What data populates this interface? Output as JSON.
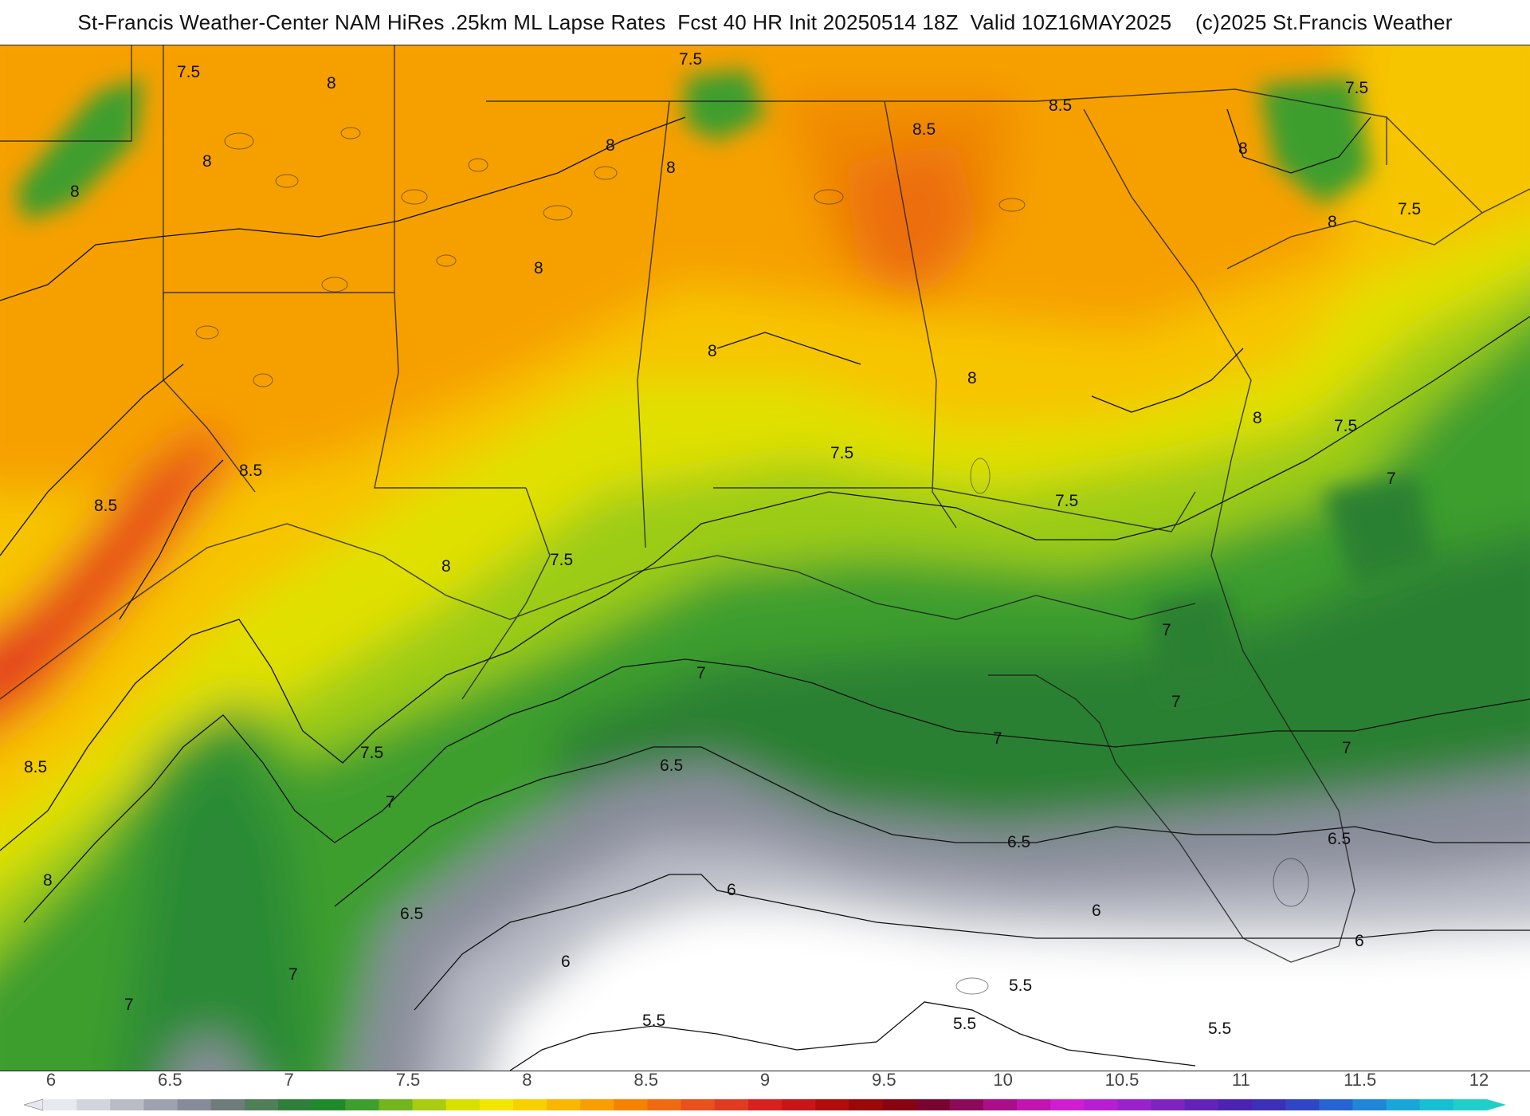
{
  "header": {
    "title": "St-Francis Weather-Center NAM HiRes .25km ML Lapse Rates  Fcst 40 HR Init 20250514 18Z  Valid 10Z16MAY2025    (c)2025 St.Francis Weather"
  },
  "map": {
    "field": "ML Lapse Rates",
    "contour_labels": [
      {
        "id": "c01",
        "text": "7.5"
      },
      {
        "id": "c02",
        "text": "8"
      },
      {
        "id": "c03",
        "text": "8"
      },
      {
        "id": "c04",
        "text": "8"
      },
      {
        "id": "c05",
        "text": "7.5"
      },
      {
        "id": "c06",
        "text": "8"
      },
      {
        "id": "c07",
        "text": "8"
      },
      {
        "id": "c08",
        "text": "8.5"
      },
      {
        "id": "c09",
        "text": "8.5"
      },
      {
        "id": "c10",
        "text": "8"
      },
      {
        "id": "c11",
        "text": "7.5"
      },
      {
        "id": "c12",
        "text": "8"
      },
      {
        "id": "c13",
        "text": "7.5"
      },
      {
        "id": "c14",
        "text": "8"
      },
      {
        "id": "c15",
        "text": "8"
      },
      {
        "id": "c16",
        "text": "8"
      },
      {
        "id": "c17",
        "text": "8.5"
      },
      {
        "id": "c18",
        "text": "8.5"
      },
      {
        "id": "c19",
        "text": "7.5"
      },
      {
        "id": "c20",
        "text": "7"
      },
      {
        "id": "c21",
        "text": "8"
      },
      {
        "id": "c22",
        "text": "7.5"
      },
      {
        "id": "c23",
        "text": "7.5"
      },
      {
        "id": "c24",
        "text": "8"
      },
      {
        "id": "c25",
        "text": "7.5"
      },
      {
        "id": "c26",
        "text": "8.5"
      },
      {
        "id": "c27",
        "text": "7.5"
      },
      {
        "id": "c28",
        "text": "7"
      },
      {
        "id": "c29",
        "text": "7"
      },
      {
        "id": "c30",
        "text": "7"
      },
      {
        "id": "c31",
        "text": "7"
      },
      {
        "id": "c32",
        "text": "7"
      },
      {
        "id": "c33",
        "text": "7"
      },
      {
        "id": "c34",
        "text": "6.5"
      },
      {
        "id": "c35",
        "text": "6.5"
      },
      {
        "id": "c36",
        "text": "6.5"
      },
      {
        "id": "c37",
        "text": "6.5"
      },
      {
        "id": "c38",
        "text": "8"
      },
      {
        "id": "c39",
        "text": "6"
      },
      {
        "id": "c40",
        "text": "6"
      },
      {
        "id": "c41",
        "text": "6"
      },
      {
        "id": "c42",
        "text": "6"
      },
      {
        "id": "c43",
        "text": "7"
      },
      {
        "id": "c44",
        "text": "7"
      },
      {
        "id": "c45",
        "text": "5.5"
      },
      {
        "id": "c46",
        "text": "5.5"
      },
      {
        "id": "c47",
        "text": "5.5"
      },
      {
        "id": "c48",
        "text": "5.5"
      }
    ]
  },
  "legend": {
    "ticks": [
      "6",
      "6.5",
      "7",
      "7.5",
      "8",
      "8.5",
      "9",
      "9.5",
      "10",
      "10.5",
      "11",
      "11.5",
      "12"
    ],
    "min": 6,
    "max": 12,
    "colors": [
      "#e8e9ee",
      "#d3d5dc",
      "#b9bcc6",
      "#9ea2ae",
      "#878b99",
      "#6f7d7a",
      "#4f7f57",
      "#2f7f3a",
      "#1f8a2a",
      "#3e9e2e",
      "#72b51e",
      "#a8cc10",
      "#d8e000",
      "#f2e600",
      "#f7d000",
      "#f9b700",
      "#f99e00",
      "#f48300",
      "#ef6a10",
      "#e8501e",
      "#e03a22",
      "#d82020",
      "#c81616",
      "#b20c0c",
      "#9b0808",
      "#870510",
      "#7a0430",
      "#8d0a5a",
      "#a80f88",
      "#c015b0",
      "#cf1ed0",
      "#b71ed4",
      "#9a22cc",
      "#7d24c0",
      "#6322b8",
      "#4a24b0",
      "#3c2fb8",
      "#2f46c6",
      "#2763d2",
      "#1f86d8",
      "#19a6d8",
      "#16c0d2",
      "#20d0c8"
    ]
  }
}
